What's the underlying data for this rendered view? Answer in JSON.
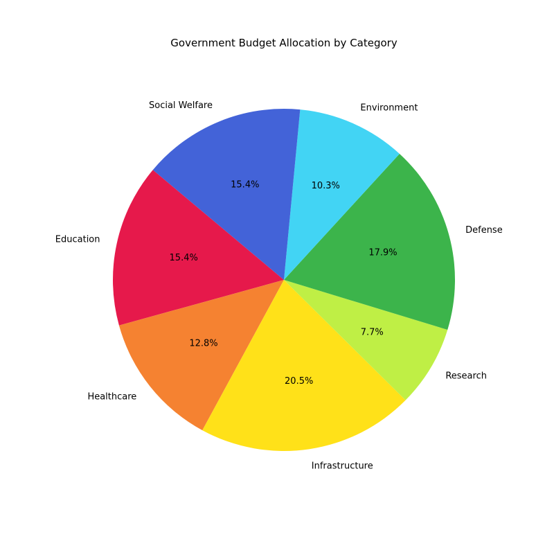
{
  "chart_data": {
    "type": "pie",
    "title": "Government Budget Allocation by Category",
    "start_angle_deg": 140,
    "direction": "counterclockwise",
    "slices": [
      {
        "label": "Education",
        "value": 15.4,
        "pct_text": "15.4%",
        "color": "#e6194b"
      },
      {
        "label": "Healthcare",
        "value": 12.8,
        "pct_text": "12.8%",
        "color": "#f58231"
      },
      {
        "label": "Infrastructure",
        "value": 20.5,
        "pct_text": "20.5%",
        "color": "#ffe119"
      },
      {
        "label": "Research",
        "value": 7.7,
        "pct_text": "7.7%",
        "color": "#bfef45"
      },
      {
        "label": "Defense",
        "value": 17.9,
        "pct_text": "17.9%",
        "color": "#3cb44b"
      },
      {
        "label": "Environment",
        "value": 10.3,
        "pct_text": "10.3%",
        "color": "#42d4f4"
      },
      {
        "label": "Social Welfare",
        "value": 15.4,
        "pct_text": "15.4%",
        "color": "#4363d8"
      }
    ]
  }
}
